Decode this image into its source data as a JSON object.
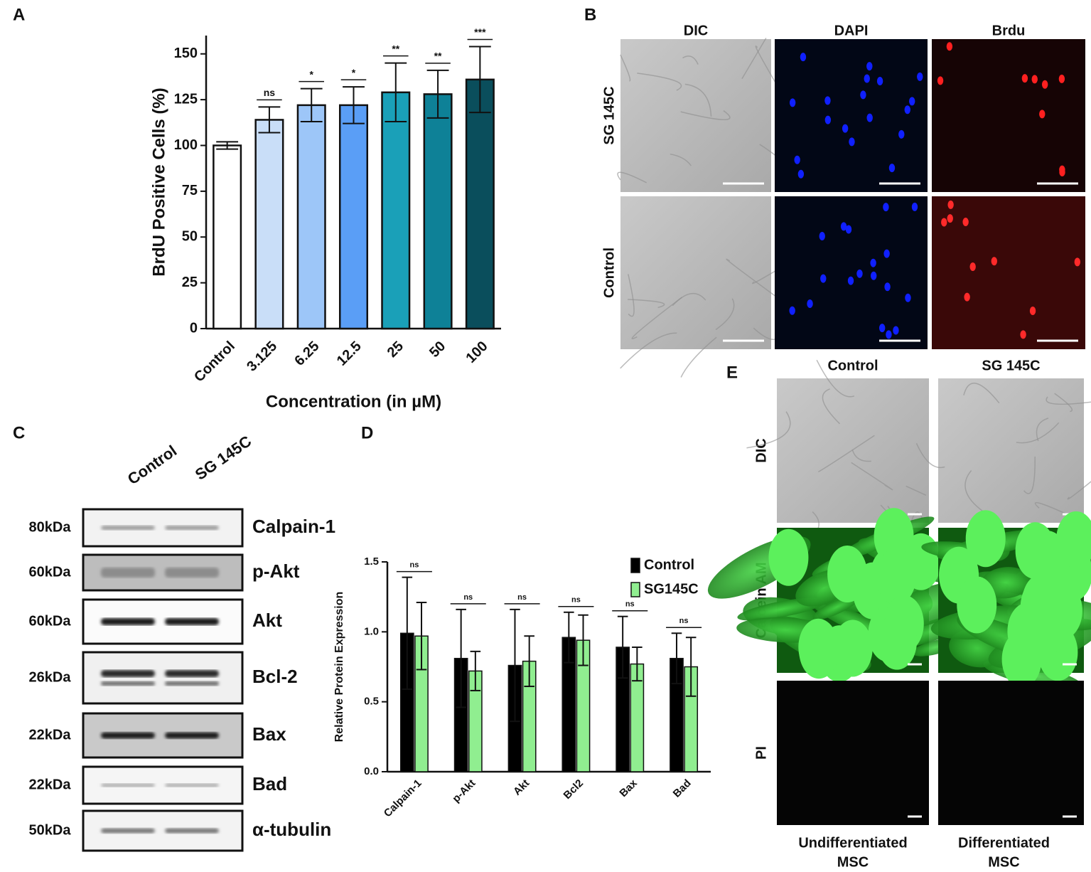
{
  "panels": [
    "A",
    "B",
    "C",
    "D",
    "E"
  ],
  "chart_data": [
    {
      "type": "bar",
      "ylabel": "BrdU Positive Cells (%)",
      "xlabel": "Concentration (in µM)",
      "categories": [
        "Control",
        "3.125",
        "6.25",
        "12.5",
        "25",
        "50",
        "100"
      ],
      "values": [
        100,
        114,
        122,
        122,
        129,
        128,
        136
      ],
      "errors": [
        2,
        7,
        9,
        10,
        16,
        13,
        18
      ],
      "colors": [
        "#ffffff",
        "#c9def8",
        "#9dc6f8",
        "#5a9ef6",
        "#1aa0b8",
        "#0e8197",
        "#0a4e5c"
      ],
      "annotations": [
        null,
        "ns",
        "*",
        "*",
        "**",
        "**",
        "***"
      ],
      "ylim": [
        0,
        160
      ],
      "yticks": [
        0,
        25,
        50,
        75,
        100,
        125,
        150
      ]
    },
    {
      "type": "bar",
      "ylabel": "Relative Protein Expression",
      "categories": [
        "Calpain-1",
        "p-Akt",
        "Akt",
        "Bcl2",
        "Bax",
        "Bad"
      ],
      "series": [
        {
          "name": "Control",
          "color": "#000000",
          "values": [
            0.99,
            0.81,
            0.76,
            0.96,
            0.89,
            0.81
          ],
          "errors": [
            0.4,
            0.35,
            0.4,
            0.18,
            0.22,
            0.18
          ]
        },
        {
          "name": "SG145C",
          "color": "#90ee90",
          "values": [
            0.97,
            0.72,
            0.79,
            0.94,
            0.77,
            0.75
          ],
          "errors": [
            0.24,
            0.14,
            0.18,
            0.18,
            0.12,
            0.21
          ]
        }
      ],
      "annotations": [
        "ns",
        "ns",
        "ns",
        "ns",
        "ns",
        "ns"
      ],
      "legend": "top-right",
      "ylim": [
        0,
        1.5
      ],
      "yticks": [
        {
          "value": 0,
          "label": "0.0"
        },
        0.5,
        {
          "value": 1,
          "label": "1.0"
        },
        1.5
      ]
    }
  ],
  "microscopy_b": {
    "columns": [
      "DIC",
      "DAPI",
      "Brdu"
    ],
    "rows": [
      "SG 145C",
      "Control"
    ]
  },
  "western_blot": {
    "columns": [
      "Control",
      "SG 145C"
    ],
    "rows": [
      {
        "size": "80kDa",
        "protein": "Calpain-1"
      },
      {
        "size": "60kDa",
        "protein": "p-Akt"
      },
      {
        "size": "60kDa",
        "protein": "Akt"
      },
      {
        "size": "26kDa",
        "protein": "Bcl-2"
      },
      {
        "size": "22kDa",
        "protein": "Bax"
      },
      {
        "size": "22kDa",
        "protein": "Bad"
      },
      {
        "size": "50kDa",
        "protein": "α-tubulin"
      }
    ]
  },
  "microscopy_e": {
    "columns": [
      "Control",
      "SG 145C"
    ],
    "rows": [
      "DIC",
      "Calcein AM",
      "PI"
    ],
    "footers": [
      [
        "Undifferentiated",
        "MSC"
      ],
      [
        "Differentiated",
        "MSC"
      ]
    ]
  }
}
